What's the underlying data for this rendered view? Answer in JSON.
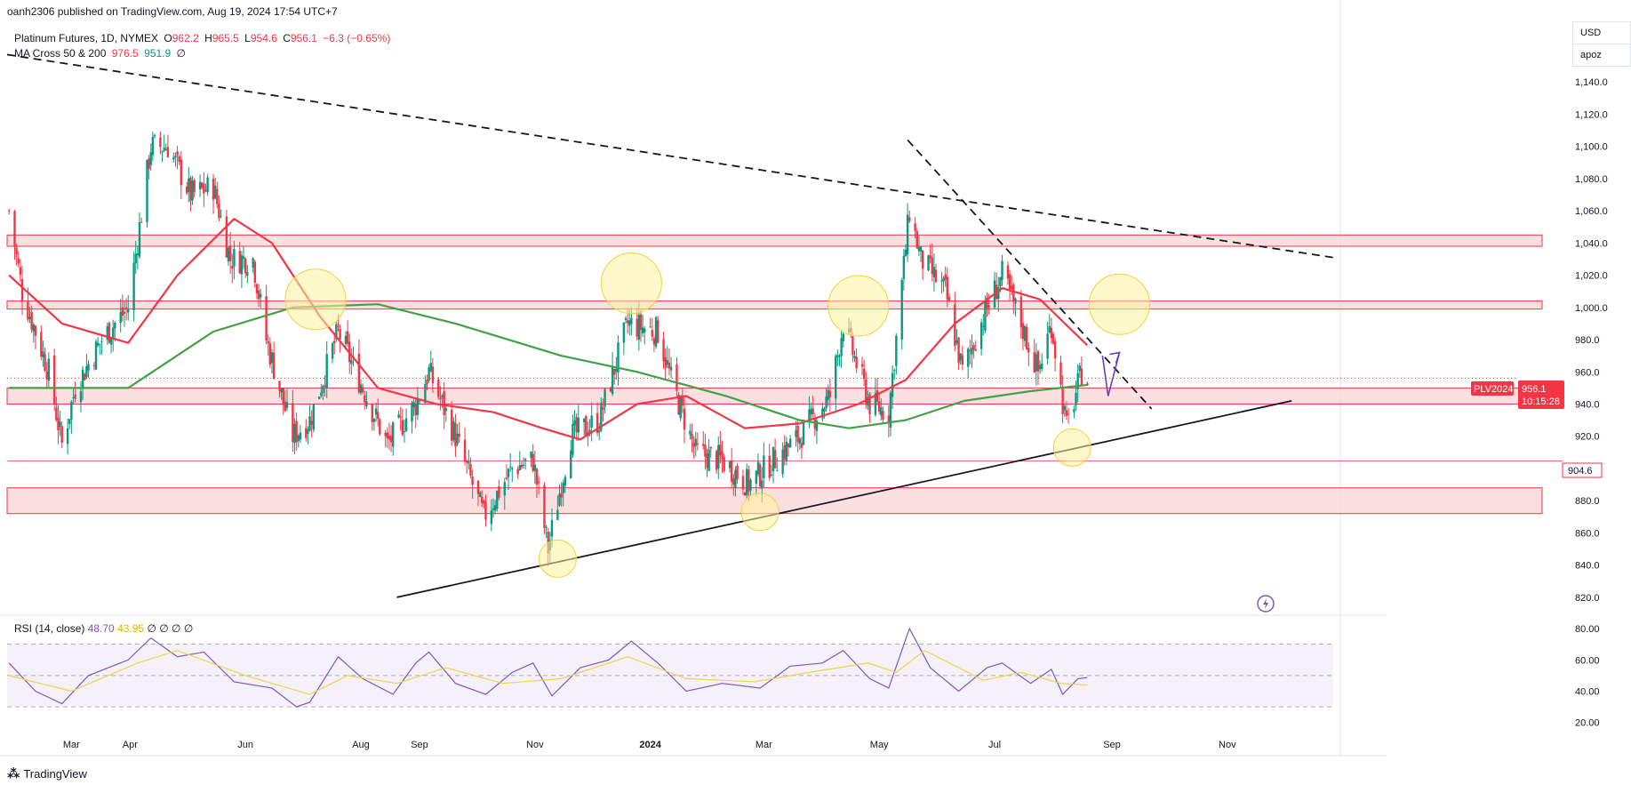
{
  "header": {
    "publisher_line": "oanh2306 published on TradingView.com, Aug 19, 2024 17:54 UTC+7"
  },
  "legend": {
    "symbol": "Platinum Futures, 1D, NYMEX",
    "o_label": "O",
    "o_value": "962.2",
    "h_label": "H",
    "h_value": "965.5",
    "l_label": "L",
    "l_value": "954.6",
    "c_label": "C",
    "c_value": "956.1",
    "change": "−6.3 (−0.65%)",
    "ma_name": "MA Cross 50 & 200",
    "ma50_value": "976.5",
    "ma200_value": "951.9",
    "ma_extra": "∅"
  },
  "rsi_legend": {
    "name": "RSI (14, close)",
    "rsi_value": "48.70",
    "sma_value": "43.95",
    "extras": "∅ ∅ ∅ ∅"
  },
  "top_right": {
    "currency": "USD",
    "scale": "apoz"
  },
  "price_tag": {
    "symbol": "PLV2024",
    "price": "956.1",
    "countdown": "10:15:28"
  },
  "level_tag": {
    "price": "904.6"
  },
  "footer": {
    "logo_text": "TradingView"
  },
  "colors": {
    "up": "#089981",
    "down": "#f23645",
    "ma50": "#f23645",
    "ma200": "#43a047",
    "rsi": "#7e57c2",
    "rsi_sma": "#f0d34a",
    "zone_fill": "#fbd1d4",
    "zone_line": "#f23645",
    "highlight": "#fff3a0",
    "annotation": "#6a3fc7"
  },
  "chart_data": [
    {
      "type": "candlestick",
      "title": "Platinum Futures, 1D, NYMEX",
      "x_tick_labels": [
        "Mar",
        "Apr",
        "Jun",
        "Aug",
        "Sep",
        "Nov",
        "2024",
        "Mar",
        "May",
        "Jul",
        "Sep",
        "Nov"
      ],
      "y_tick_labels": [
        "820.0",
        "840.0",
        "860.0",
        "880.0",
        "900.0",
        "920.0",
        "940.0",
        "960.0",
        "980.0",
        "1,000.0",
        "1,020.0",
        "1,040.0",
        "1,060.0",
        "1,080.0",
        "1,100.0",
        "1,120.0",
        "1,140.0"
      ],
      "ylim": [
        810,
        1160
      ],
      "x_range": [
        "2023-01-26",
        "2024-12-27"
      ],
      "price_path": [
        [
          "2023-01-27",
          1060
        ],
        [
          "2023-02-03",
          1010
        ],
        [
          "2023-02-17",
          960
        ],
        [
          "2023-02-24",
          915
        ],
        [
          "2023-03-03",
          950
        ],
        [
          "2023-03-17",
          980
        ],
        [
          "2023-03-31",
          1000
        ],
        [
          "2023-04-12",
          1100
        ],
        [
          "2023-04-21",
          1100
        ],
        [
          "2023-05-03",
          1070
        ],
        [
          "2023-05-15",
          1075
        ],
        [
          "2023-05-24",
          1030
        ],
        [
          "2023-06-05",
          1030
        ],
        [
          "2023-06-12",
          980
        ],
        [
          "2023-06-26",
          920
        ],
        [
          "2023-07-05",
          930
        ],
        [
          "2023-07-20",
          985
        ],
        [
          "2023-08-02",
          950
        ],
        [
          "2023-08-15",
          915
        ],
        [
          "2023-08-30",
          940
        ],
        [
          "2023-09-06",
          960
        ],
        [
          "2023-09-20",
          920
        ],
        [
          "2023-10-05",
          870
        ],
        [
          "2023-10-20",
          900
        ],
        [
          "2023-10-31",
          905
        ],
        [
          "2023-11-08",
          850
        ],
        [
          "2023-11-20",
          920
        ],
        [
          "2023-12-05",
          930
        ],
        [
          "2023-12-20",
          990
        ],
        [
          "2024-01-05",
          985
        ],
        [
          "2024-01-12",
          955
        ],
        [
          "2024-01-25",
          910
        ],
        [
          "2024-02-08",
          905
        ],
        [
          "2024-02-22",
          890
        ],
        [
          "2024-03-06",
          905
        ],
        [
          "2024-03-20",
          920
        ],
        [
          "2024-04-05",
          945
        ],
        [
          "2024-04-12",
          990
        ],
        [
          "2024-04-26",
          940
        ],
        [
          "2024-05-06",
          935
        ],
        [
          "2024-05-17",
          1060
        ],
        [
          "2024-05-23",
          1030
        ],
        [
          "2024-06-05",
          1010
        ],
        [
          "2024-06-14",
          960
        ],
        [
          "2024-06-27",
          1000
        ],
        [
          "2024-07-05",
          1020
        ],
        [
          "2024-07-15",
          990
        ],
        [
          "2024-07-24",
          960
        ],
        [
          "2024-07-31",
          990
        ],
        [
          "2024-08-08",
          925
        ],
        [
          "2024-08-16",
          960
        ],
        [
          "2024-08-19",
          956
        ]
      ],
      "series": [
        {
          "name": "MA 50",
          "points": [
            [
              "2023-01-27",
              1020
            ],
            [
              "2023-02-24",
              990
            ],
            [
              "2023-03-31",
              978
            ],
            [
              "2023-04-26",
              1020
            ],
            [
              "2023-05-26",
              1055
            ],
            [
              "2023-06-15",
              1040
            ],
            [
              "2023-07-10",
              995
            ],
            [
              "2023-08-10",
              950
            ],
            [
              "2023-09-10",
              940
            ],
            [
              "2023-10-10",
              935
            ],
            [
              "2023-11-05",
              925
            ],
            [
              "2023-11-25",
              918
            ],
            [
              "2023-12-25",
              940
            ],
            [
              "2024-01-20",
              945
            ],
            [
              "2024-02-20",
              925
            ],
            [
              "2024-03-20",
              928
            ],
            [
              "2024-04-20",
              940
            ],
            [
              "2024-05-15",
              955
            ],
            [
              "2024-06-10",
              990
            ],
            [
              "2024-07-05",
              1012
            ],
            [
              "2024-07-25",
              1005
            ],
            [
              "2024-08-19",
              976.5
            ]
          ]
        },
        {
          "name": "MA 200",
          "points": [
            [
              "2023-01-27",
              950
            ],
            [
              "2023-03-31",
              950
            ],
            [
              "2023-05-15",
              985
            ],
            [
              "2023-06-26",
              1000
            ],
            [
              "2023-08-10",
              1002
            ],
            [
              "2023-09-20",
              990
            ],
            [
              "2023-11-15",
              970
            ],
            [
              "2023-12-25",
              960
            ],
            [
              "2024-02-10",
              945
            ],
            [
              "2024-03-20",
              930
            ],
            [
              "2024-04-15",
              925
            ],
            [
              "2024-05-15",
              930
            ],
            [
              "2024-06-15",
              942
            ],
            [
              "2024-07-20",
              948
            ],
            [
              "2024-08-19",
              951.9
            ]
          ]
        }
      ],
      "zones": [
        {
          "low": 1038,
          "high": 1045
        },
        {
          "low": 999,
          "high": 1004
        },
        {
          "low": 940,
          "high": 950
        },
        {
          "low": 872,
          "high": 888
        }
      ],
      "trendlines": [
        {
          "style": "dashed",
          "from": [
            "2023-01-26",
            1157
          ],
          "to": [
            "2024-12-27",
            1031
          ]
        },
        {
          "style": "dashed",
          "from": [
            "2024-05-16",
            1104
          ],
          "to": [
            "2024-09-22",
            937
          ]
        },
        {
          "style": "solid",
          "from": [
            "2023-08-20",
            820
          ],
          "to": [
            "2024-12-05",
            942
          ]
        }
      ],
      "highlights": [
        {
          "date": "2023-07-08",
          "price": 1005
        },
        {
          "date": "2023-12-22",
          "price": 1015
        },
        {
          "date": "2024-04-20",
          "price": 1001
        },
        {
          "date": "2024-09-05",
          "price": 1002
        },
        {
          "date": "2023-11-13",
          "price": 844
        },
        {
          "date": "2024-02-28",
          "price": 873
        },
        {
          "date": "2024-08-11",
          "price": 913
        }
      ],
      "last_price": 956.1,
      "marked_level": 904.6,
      "projection": [
        [
          "2024-08-27",
          970
        ],
        [
          "2024-08-30",
          945
        ],
        [
          "2024-09-05",
          972
        ]
      ]
    },
    {
      "type": "line",
      "title": "RSI (14, close)",
      "y_tick_labels": [
        "20.00",
        "40.00",
        "60.00",
        "80.00"
      ],
      "ylim": [
        17,
        84
      ],
      "band": [
        30,
        70
      ],
      "midline": 50,
      "series": [
        {
          "name": "RSI",
          "points": [
            [
              "2023-01-27",
              58
            ],
            [
              "2023-02-10",
              40
            ],
            [
              "2023-02-24",
              32
            ],
            [
              "2023-03-10",
              50
            ],
            [
              "2023-03-31",
              60
            ],
            [
              "2023-04-12",
              74
            ],
            [
              "2023-04-26",
              62
            ],
            [
              "2023-05-10",
              65
            ],
            [
              "2023-05-26",
              46
            ],
            [
              "2023-06-15",
              42
            ],
            [
              "2023-06-28",
              30
            ],
            [
              "2023-07-05",
              33
            ],
            [
              "2023-07-20",
              62
            ],
            [
              "2023-08-02",
              48
            ],
            [
              "2023-08-18",
              38
            ],
            [
              "2023-08-30",
              58
            ],
            [
              "2023-09-06",
              65
            ],
            [
              "2023-09-20",
              45
            ],
            [
              "2023-10-06",
              38
            ],
            [
              "2023-10-20",
              52
            ],
            [
              "2023-10-31",
              58
            ],
            [
              "2023-11-10",
              37
            ],
            [
              "2023-11-25",
              55
            ],
            [
              "2023-12-10",
              60
            ],
            [
              "2023-12-22",
              72
            ],
            [
              "2024-01-05",
              58
            ],
            [
              "2024-01-20",
              40
            ],
            [
              "2024-02-08",
              45
            ],
            [
              "2024-02-28",
              42
            ],
            [
              "2024-03-15",
              56
            ],
            [
              "2024-04-01",
              58
            ],
            [
              "2024-04-12",
              66
            ],
            [
              "2024-04-26",
              48
            ],
            [
              "2024-05-06",
              42
            ],
            [
              "2024-05-17",
              80
            ],
            [
              "2024-05-28",
              55
            ],
            [
              "2024-06-12",
              40
            ],
            [
              "2024-06-27",
              55
            ],
            [
              "2024-07-05",
              58
            ],
            [
              "2024-07-20",
              45
            ],
            [
              "2024-07-31",
              54
            ],
            [
              "2024-08-06",
              38
            ],
            [
              "2024-08-14",
              48
            ],
            [
              "2024-08-19",
              48.7
            ]
          ]
        },
        {
          "name": "SMA",
          "points": [
            [
              "2023-01-27",
              50
            ],
            [
              "2023-03-01",
              40
            ],
            [
              "2023-04-05",
              58
            ],
            [
              "2023-04-26",
              66
            ],
            [
              "2023-06-01",
              50
            ],
            [
              "2023-07-05",
              38
            ],
            [
              "2023-07-25",
              50
            ],
            [
              "2023-08-20",
              45
            ],
            [
              "2023-09-15",
              55
            ],
            [
              "2023-10-15",
              45
            ],
            [
              "2023-11-15",
              48
            ],
            [
              "2023-12-20",
              62
            ],
            [
              "2024-01-20",
              48
            ],
            [
              "2024-02-25",
              46
            ],
            [
              "2024-03-25",
              52
            ],
            [
              "2024-04-25",
              58
            ],
            [
              "2024-05-10",
              52
            ],
            [
              "2024-05-25",
              66
            ],
            [
              "2024-06-25",
              47
            ],
            [
              "2024-07-15",
              52
            ],
            [
              "2024-08-05",
              45
            ],
            [
              "2024-08-19",
              43.95
            ]
          ]
        }
      ]
    }
  ]
}
